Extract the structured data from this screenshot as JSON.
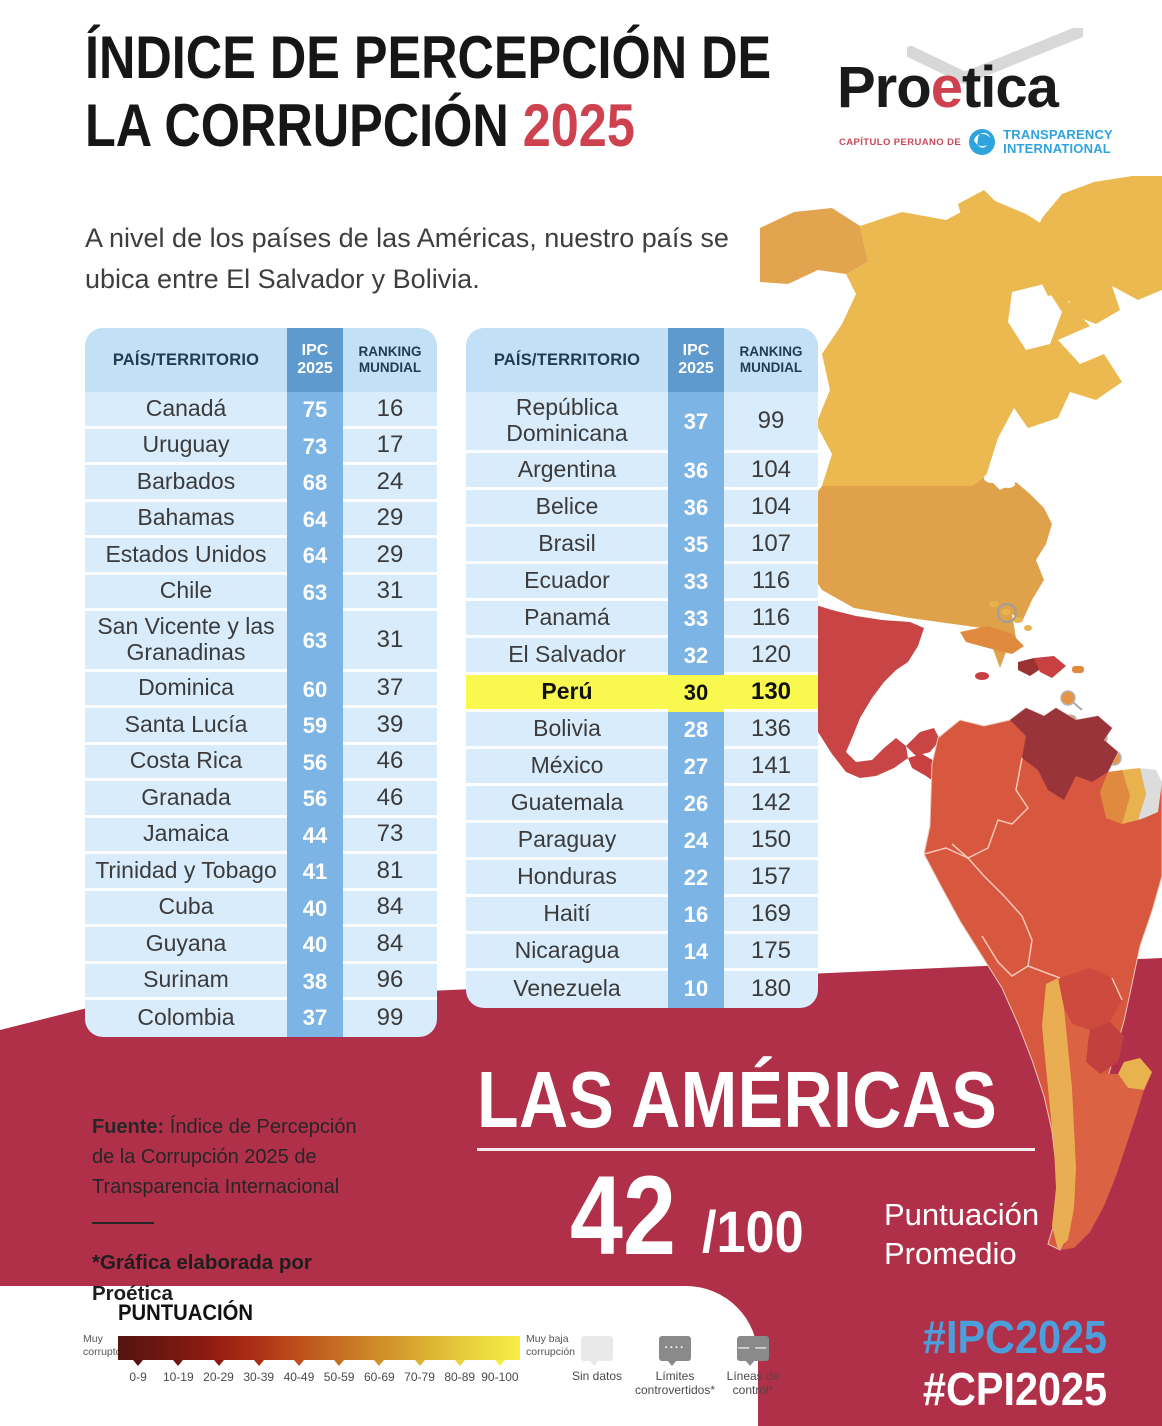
{
  "meta": {
    "colors": {
      "crimson_band": "#B13049",
      "accent_red": "#CE4250",
      "hashtag_blue": "#4C9FDB",
      "table_header_blue": "#5E9ACE",
      "table_stripe_blue": "#7CB5E5",
      "table_bg_blue": "#D8ECFB",
      "highlight_yellow": "#F8F84F"
    }
  },
  "header": {
    "title_line1": "ÍNDICE DE PERCEPCIÓN DE",
    "title_line2": "LA CORRUPCIÓN",
    "title_year": "2025",
    "logo": {
      "brand_before": "Pro",
      "brand_accent": "e",
      "brand_after": "tica",
      "chapter_label": "CAPÍTULO PERUANO DE",
      "partner_line1": "TRANSPARENCY",
      "partner_line2": "INTERNATIONAL"
    }
  },
  "intro_text": "A nivel de los países de las Américas, nuestro país se ubica entre El Salvador y Bolivia.",
  "table_headers": {
    "country": "PAÍS/TERRITORIO",
    "ipc_line1": "IPC",
    "ipc_line2": "2025",
    "ranking_line1": "RANKING",
    "ranking_line2": "MUNDIAL"
  },
  "table_left": {
    "rows": [
      {
        "country": "Canadá",
        "ipc": "75",
        "rank": "16"
      },
      {
        "country": "Uruguay",
        "ipc": "73",
        "rank": "17"
      },
      {
        "country": "Barbados",
        "ipc": "68",
        "rank": "24"
      },
      {
        "country": "Bahamas",
        "ipc": "64",
        "rank": "29"
      },
      {
        "country": "Estados Unidos",
        "ipc": "64",
        "rank": "29"
      },
      {
        "country": "Chile",
        "ipc": "63",
        "rank": "31"
      },
      {
        "country": "San Vicente y las Granadinas",
        "ipc": "63",
        "rank": "31"
      },
      {
        "country": "Dominica",
        "ipc": "60",
        "rank": "37"
      },
      {
        "country": "Santa Lucía",
        "ipc": "59",
        "rank": "39"
      },
      {
        "country": "Costa Rica",
        "ipc": "56",
        "rank": "46"
      },
      {
        "country": "Granada",
        "ipc": "56",
        "rank": "46"
      },
      {
        "country": "Jamaica",
        "ipc": "44",
        "rank": "73"
      },
      {
        "country": "Trinidad y Tobago",
        "ipc": "41",
        "rank": "81"
      },
      {
        "country": "Cuba",
        "ipc": "40",
        "rank": "84"
      },
      {
        "country": "Guyana",
        "ipc": "40",
        "rank": "84"
      },
      {
        "country": "Surinam",
        "ipc": "38",
        "rank": "96"
      },
      {
        "country": "Colombia",
        "ipc": "37",
        "rank": "99"
      }
    ]
  },
  "table_right": {
    "rows": [
      {
        "country": "República Dominicana",
        "ipc": "37",
        "rank": "99"
      },
      {
        "country": "Argentina",
        "ipc": "36",
        "rank": "104"
      },
      {
        "country": "Belice",
        "ipc": "36",
        "rank": "104"
      },
      {
        "country": "Brasil",
        "ipc": "35",
        "rank": "107"
      },
      {
        "country": "Ecuador",
        "ipc": "33",
        "rank": "116"
      },
      {
        "country": "Panamá",
        "ipc": "33",
        "rank": "116"
      },
      {
        "country": "El Salvador",
        "ipc": "32",
        "rank": "120"
      },
      {
        "country": "Perú",
        "ipc": "30",
        "rank": "130",
        "highlight": true
      },
      {
        "country": "Bolivia",
        "ipc": "28",
        "rank": "136"
      },
      {
        "country": "México",
        "ipc": "27",
        "rank": "141"
      },
      {
        "country": "Guatemala",
        "ipc": "26",
        "rank": "142"
      },
      {
        "country": "Paraguay",
        "ipc": "24",
        "rank": "150"
      },
      {
        "country": "Honduras",
        "ipc": "22",
        "rank": "157"
      },
      {
        "country": "Haití",
        "ipc": "16",
        "rank": "169"
      },
      {
        "country": "Nicaragua",
        "ipc": "14",
        "rank": "175"
      },
      {
        "country": "Venezuela",
        "ipc": "10",
        "rank": "180"
      }
    ]
  },
  "region_banner": {
    "title": "LAS AMÉRICAS",
    "score": "42",
    "score_denominator": "/100",
    "score_label_line1": "Puntuación",
    "score_label_line2": "Promedio"
  },
  "source": {
    "label": "Fuente:",
    "text": " Índice de Percepción de la Corrupción 2025 de Transparencia Internacional",
    "credit": "*Gráfica elaborada por Proética"
  },
  "legend": {
    "title": "PUNTUACIÓN",
    "left_label": "Muy corrupto",
    "right_label": "Muy baja corrupción",
    "ticks": [
      "0-9",
      "10-19",
      "20-29",
      "30-39",
      "40-49",
      "50-59",
      "60-69",
      "70-79",
      "80-89",
      "90-100"
    ],
    "scale_colors": [
      "#541410",
      "#6E1710",
      "#8E1B11",
      "#AC2D15",
      "#BC4F1C",
      "#C77024",
      "#D0922B",
      "#DDB434",
      "#EAD43D",
      "#F6EE48"
    ],
    "items": [
      {
        "label_line1": "Sin datos",
        "label_line2": ""
      },
      {
        "label_line1": "Límites",
        "label_line2": "controvertidos*"
      },
      {
        "label_line1": "Líneas de",
        "label_line2": "control*"
      }
    ]
  },
  "hashtags": {
    "primary": "#IPC2025",
    "secondary": "#CPI2025"
  },
  "chart_data": {
    "type": "table",
    "title": "Índice de Percepción de la Corrupción 2025 — Las Américas",
    "columns": [
      "PAÍS/TERRITORIO",
      "IPC 2025",
      "RANKING MUNDIAL"
    ],
    "rows": [
      [
        "Canadá",
        75,
        16
      ],
      [
        "Uruguay",
        73,
        17
      ],
      [
        "Barbados",
        68,
        24
      ],
      [
        "Bahamas",
        64,
        29
      ],
      [
        "Estados Unidos",
        64,
        29
      ],
      [
        "Chile",
        63,
        31
      ],
      [
        "San Vicente y las Granadinas",
        63,
        31
      ],
      [
        "Dominica",
        60,
        37
      ],
      [
        "Santa Lucía",
        59,
        39
      ],
      [
        "Costa Rica",
        56,
        46
      ],
      [
        "Granada",
        56,
        46
      ],
      [
        "Jamaica",
        44,
        73
      ],
      [
        "Trinidad y Tobago",
        41,
        81
      ],
      [
        "Cuba",
        40,
        84
      ],
      [
        "Guyana",
        40,
        84
      ],
      [
        "Surinam",
        38,
        96
      ],
      [
        "Colombia",
        37,
        99
      ],
      [
        "República Dominicana",
        37,
        99
      ],
      [
        "Argentina",
        36,
        104
      ],
      [
        "Belice",
        36,
        104
      ],
      [
        "Brasil",
        35,
        107
      ],
      [
        "Ecuador",
        33,
        116
      ],
      [
        "Panamá",
        33,
        116
      ],
      [
        "El Salvador",
        32,
        120
      ],
      [
        "Perú",
        30,
        130
      ],
      [
        "Bolivia",
        28,
        136
      ],
      [
        "México",
        27,
        141
      ],
      [
        "Guatemala",
        26,
        142
      ],
      [
        "Paraguay",
        24,
        150
      ],
      [
        "Honduras",
        22,
        157
      ],
      [
        "Haití",
        16,
        169
      ],
      [
        "Nicaragua",
        14,
        175
      ],
      [
        "Venezuela",
        10,
        180
      ]
    ],
    "highlighted_row": [
      "Perú",
      30,
      130
    ],
    "average_score": 42,
    "score_scale": {
      "min": 0,
      "max": 100,
      "low_label": "Muy corrupto",
      "high_label": "Muy baja corrupción"
    }
  }
}
